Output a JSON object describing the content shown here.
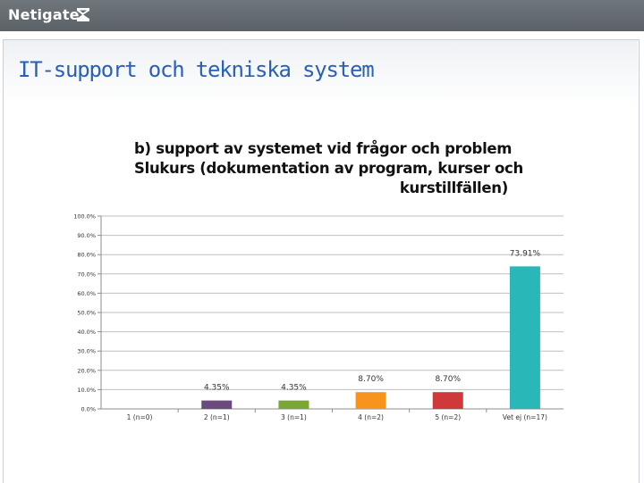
{
  "header": {
    "logo_text": "Netigate"
  },
  "page": {
    "title": "IT-support och tekniska system"
  },
  "chart_data": {
    "type": "bar",
    "title_lines": [
      "b) support av systemet vid frågor och problem",
      "Slukurs (dokumentation av program, kurser och",
      "kurstillfällen)"
    ],
    "categories": [
      "1 (n=0)",
      "2 (n=1)",
      "3 (n=1)",
      "4 (n=2)",
      "5 (n=2)",
      "Vet ej (n=17)"
    ],
    "values": [
      0,
      4.35,
      4.35,
      8.7,
      8.7,
      73.91
    ],
    "data_labels": [
      "",
      "4.35%",
      "4.35%",
      "8.70%",
      "8.70%",
      "73.91%"
    ],
    "colors": [
      "#4f81bd",
      "#6b4a7e",
      "#7aa733",
      "#f7941d",
      "#d0393a",
      "#2ab7b7"
    ],
    "y_ticks": [
      "0.0%",
      "10.0%",
      "20.0%",
      "30.0%",
      "40.0%",
      "50.0%",
      "60.0%",
      "70.0%",
      "80.0%",
      "90.0%",
      "100.0%"
    ],
    "ylim": [
      0,
      100
    ],
    "xlabel": "",
    "ylabel": "",
    "grid": true
  }
}
